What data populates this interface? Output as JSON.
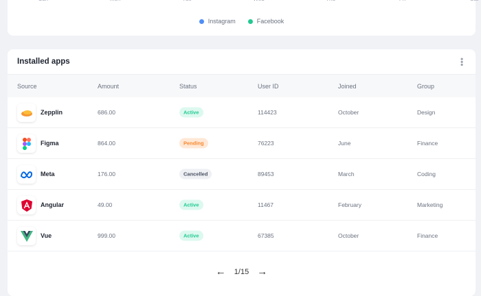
{
  "chart": {
    "days": [
      "Sun",
      "Mon",
      "Tue",
      "Wed",
      "Thu",
      "Fri",
      "Sat"
    ],
    "legend": [
      {
        "label": "Instagram",
        "color": "#4f8ef7"
      },
      {
        "label": "Facebook",
        "color": "#22c993"
      }
    ]
  },
  "apps": {
    "title": "Installed apps",
    "menu_icon": "kebab-icon",
    "columns": [
      "Source",
      "Amount",
      "Status",
      "User ID",
      "Joined",
      "Group"
    ],
    "rows": [
      {
        "source": "Zepplin",
        "icon": "zeplin-logo",
        "amount": "686.00",
        "status": "Active",
        "user_id": "114423",
        "joined": "October",
        "group": "Design"
      },
      {
        "source": "Figma",
        "icon": "figma-logo",
        "amount": "864.00",
        "status": "Pending",
        "user_id": "76223",
        "joined": "June",
        "group": "Finance"
      },
      {
        "source": "Meta",
        "icon": "meta-logo",
        "amount": "176.00",
        "status": "Cancelled",
        "user_id": "89453",
        "joined": "March",
        "group": "Coding"
      },
      {
        "source": "Angular",
        "icon": "angular-logo",
        "amount": "49.00",
        "status": "Active",
        "user_id": "11467",
        "joined": "February",
        "group": "Marketing"
      },
      {
        "source": "Vue",
        "icon": "vue-logo",
        "amount": "999.00",
        "status": "Active",
        "user_id": "67385",
        "joined": "October",
        "group": "Finance"
      }
    ],
    "status_colors": {
      "Active": {
        "bg": "#ddf9ef",
        "fg": "#22c993"
      },
      "Pending": {
        "bg": "#ffe8d6",
        "fg": "#f7892f"
      },
      "Cancelled": {
        "bg": "#eef0f4",
        "fg": "#4b5263"
      }
    },
    "pagination": {
      "label": "1/15"
    }
  }
}
